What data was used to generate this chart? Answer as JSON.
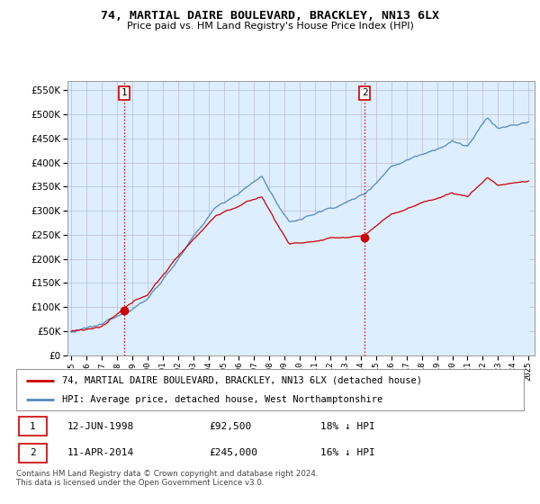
{
  "title": "74, MARTIAL DAIRE BOULEVARD, BRACKLEY, NN13 6LX",
  "subtitle": "Price paid vs. HM Land Registry's House Price Index (HPI)",
  "legend_line1": "74, MARTIAL DAIRE BOULEVARD, BRACKLEY, NN13 6LX (detached house)",
  "legend_line2": "HPI: Average price, detached house, West Northamptonshire",
  "annotation1_date": "12-JUN-1998",
  "annotation1_price": "£92,500",
  "annotation1_hpi": "18% ↓ HPI",
  "annotation2_date": "11-APR-2014",
  "annotation2_price": "£245,000",
  "annotation2_hpi": "16% ↓ HPI",
  "footer": "Contains HM Land Registry data © Crown copyright and database right 2024.\nThis data is licensed under the Open Government Licence v3.0.",
  "red_color": "#cc0000",
  "blue_color": "#5588bb",
  "fill_color": "#ddeeff",
  "ylim": [
    0,
    570000
  ],
  "yticks": [
    0,
    50000,
    100000,
    150000,
    200000,
    250000,
    300000,
    350000,
    400000,
    450000,
    500000,
    550000
  ],
  "background_color": "#ffffff",
  "grid_color": "#cccccc",
  "sale1_year": 1998.458,
  "sale1_price": 92500,
  "sale2_year": 2014.25,
  "sale2_price": 245000
}
